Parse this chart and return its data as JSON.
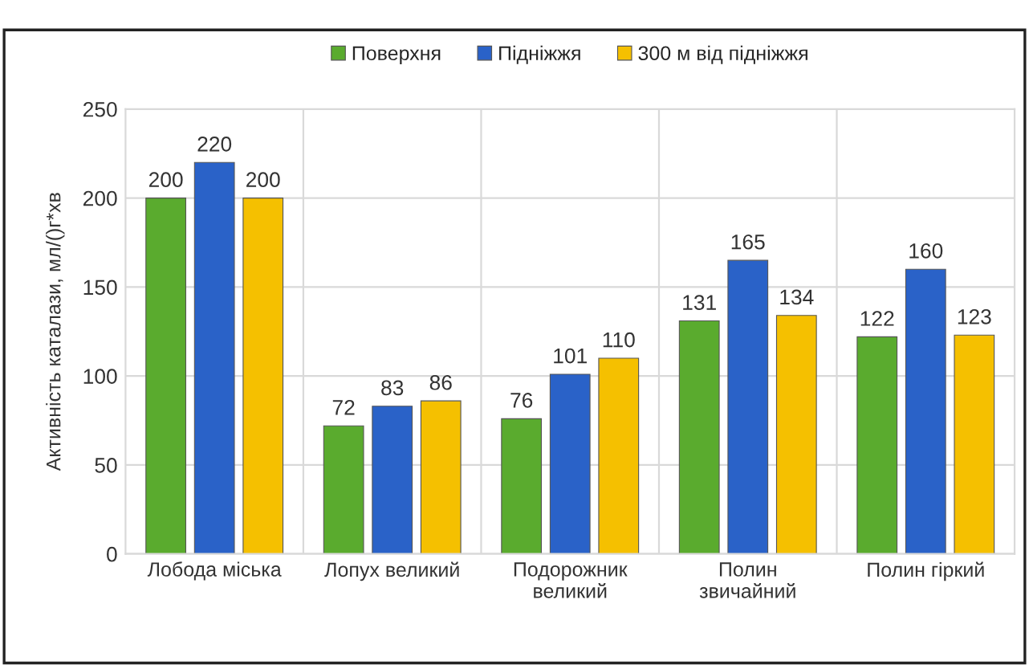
{
  "chart_data": {
    "type": "bar",
    "categories": [
      "Лобода міська",
      "Лопух великий",
      "Подорожник\nвеликий",
      "Полин\nзвичайний",
      "Полин гіркий"
    ],
    "series": [
      {
        "name": "Поверхня",
        "color": "#5aab2e",
        "values": [
          200,
          72,
          76,
          131,
          122
        ]
      },
      {
        "name": "Підніжжя",
        "color": "#2a62c8",
        "values": [
          220,
          83,
          101,
          165,
          160
        ]
      },
      {
        "name": "300 м від підніжжя",
        "color": "#f5c000",
        "values": [
          200,
          86,
          110,
          134,
          123
        ]
      }
    ],
    "ylabel": "Активність каталази, мл/()г*хв",
    "ylim": [
      0,
      250
    ],
    "yticks": [
      0,
      50,
      100,
      150,
      200,
      250
    ],
    "grid": true,
    "legend": "top",
    "data_labels": true
  }
}
